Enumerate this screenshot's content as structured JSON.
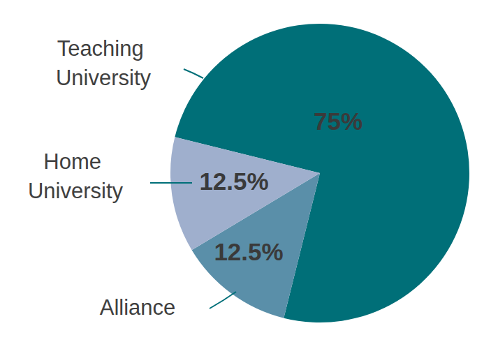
{
  "chart_data": {
    "type": "pie",
    "categories": [
      "Teaching University",
      "Alliance",
      "Home University"
    ],
    "values": [
      75,
      12.5,
      12.5
    ],
    "value_labels": [
      "75%",
      "12.5%",
      "12.5%"
    ],
    "colors": [
      "#006f78",
      "#5a8fa9",
      "#9fafcd"
    ],
    "data_labels": true
  }
}
